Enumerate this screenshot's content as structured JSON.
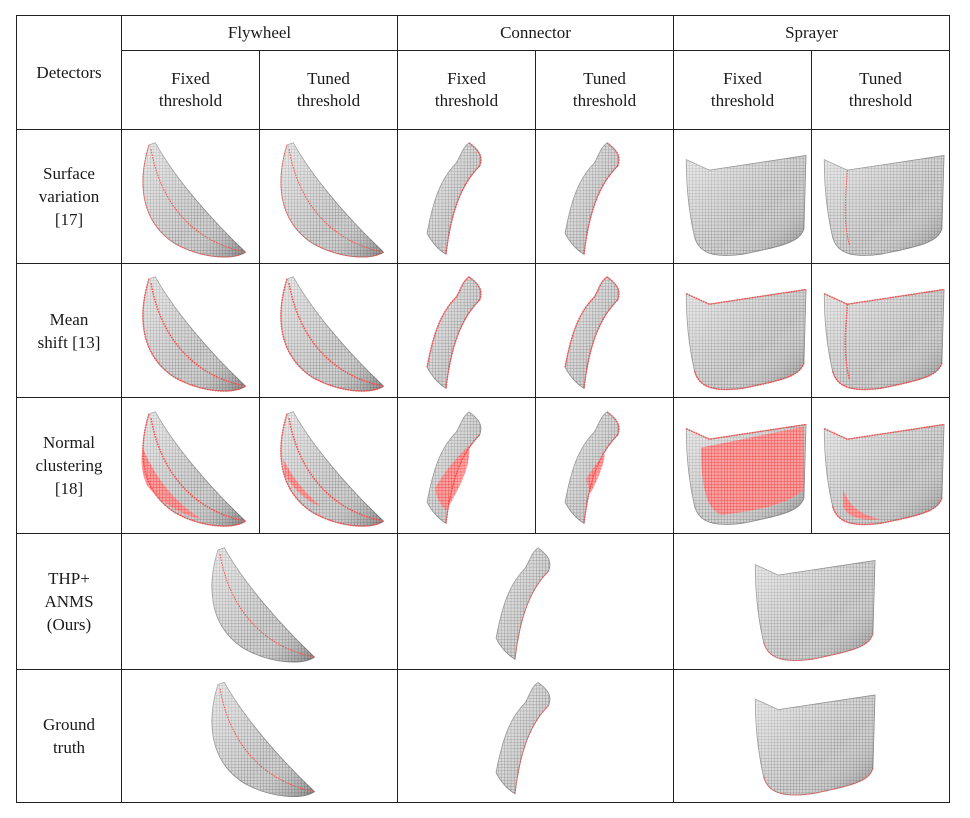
{
  "figure": {
    "corner_header": "Detectors",
    "objects": [
      "Flywheel",
      "Connector",
      "Sprayer"
    ],
    "threshold_labels": {
      "fixed": "Fixed\nthreshold",
      "tuned": "Tuned\nthreshold"
    },
    "rows": [
      {
        "label": "Surface\nvariation\n[17]"
      },
      {
        "label": "Mean\nshift [13]"
      },
      {
        "label": "Normal\nclustering\n[18]"
      },
      {
        "label": "THP+\nANMS\n(Ours)"
      },
      {
        "label": "Ground\ntruth"
      }
    ]
  },
  "colors": {
    "surface_gray": "#a9a9a9",
    "edge_red": "#ff4d4d",
    "border": "#222222"
  }
}
